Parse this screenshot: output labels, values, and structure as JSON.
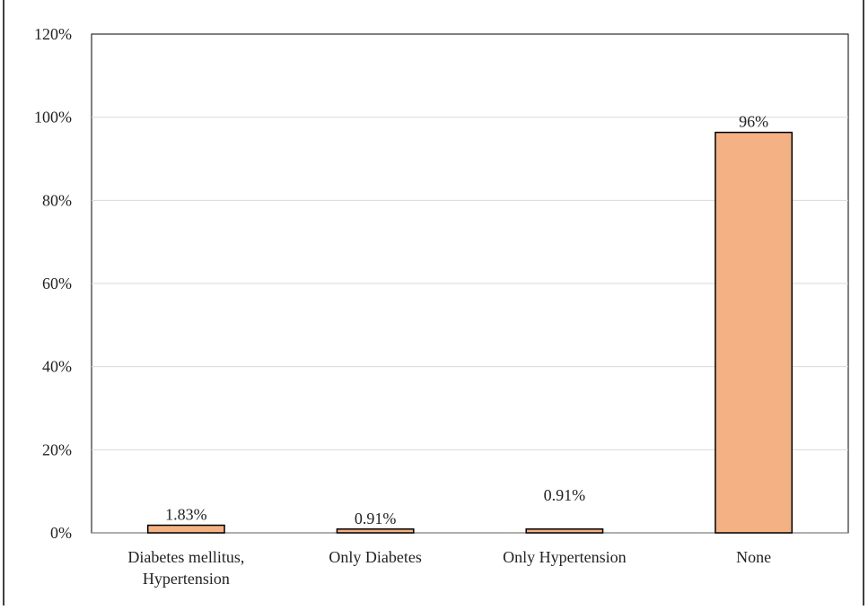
{
  "chart_data": {
    "type": "bar",
    "title": "",
    "xlabel": "",
    "ylabel": "",
    "categories": [
      [
        "Diabetes mellitus,",
        "Hypertension"
      ],
      [
        "Only Diabetes"
      ],
      [
        "Only Hypertension"
      ],
      [
        "None"
      ]
    ],
    "values": [
      1.83,
      0.91,
      0.91,
      96.35
    ],
    "data_labels": [
      "1.83%",
      "0.91%",
      "0.91%",
      "96%"
    ],
    "ylim": [
      0,
      120
    ],
    "yticks": [
      "0%",
      "20%",
      "40%",
      "60%",
      "80%",
      "100%",
      "120%"
    ],
    "ytick_values": [
      0,
      20,
      40,
      60,
      80,
      100,
      120
    ],
    "grid": true,
    "colors": {
      "bar_fill": "#F4B183",
      "bar_stroke": "#000000",
      "grid": "#D9D9D9",
      "frame": "#000000"
    }
  }
}
